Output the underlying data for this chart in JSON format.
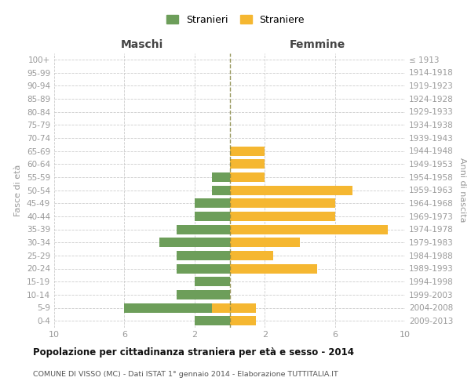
{
  "age_groups": [
    "0-4",
    "5-9",
    "10-14",
    "15-19",
    "20-24",
    "25-29",
    "30-34",
    "35-39",
    "40-44",
    "45-49",
    "50-54",
    "55-59",
    "60-64",
    "65-69",
    "70-74",
    "75-79",
    "80-84",
    "85-89",
    "90-94",
    "95-99",
    "100+"
  ],
  "birth_years": [
    "2009-2013",
    "2004-2008",
    "1999-2003",
    "1994-1998",
    "1989-1993",
    "1984-1988",
    "1979-1983",
    "1974-1978",
    "1969-1973",
    "1964-1968",
    "1959-1963",
    "1954-1958",
    "1949-1953",
    "1944-1948",
    "1939-1943",
    "1934-1938",
    "1929-1933",
    "1924-1928",
    "1919-1923",
    "1914-1918",
    "≤ 1913"
  ],
  "maschi_stranieri": [
    2,
    6,
    3,
    2,
    3,
    3,
    4,
    3,
    2,
    2,
    1,
    1,
    0,
    0,
    0,
    0,
    0,
    0,
    0,
    0,
    0
  ],
  "femmine_straniere": [
    1.5,
    1.5,
    0,
    0,
    5,
    2.5,
    4,
    9,
    6,
    6,
    7,
    2,
    2,
    2,
    0,
    0,
    0,
    0,
    0,
    0,
    0
  ],
  "maschi_straniere": [
    0,
    1,
    0,
    0,
    0,
    0,
    0,
    0,
    0,
    0,
    0,
    0,
    0,
    0,
    0,
    0,
    0,
    0,
    0,
    0,
    0
  ],
  "femmine_stranieri": [
    0,
    0,
    0,
    0,
    0,
    0,
    0,
    0,
    0,
    0,
    0,
    0,
    0,
    0,
    0,
    0,
    0,
    0,
    0,
    0,
    0
  ],
  "color_stranieri": "#6d9e5a",
  "color_straniere": "#f5b731",
  "title": "Popolazione per cittadinanza straniera per età e sesso - 2014",
  "subtitle": "COMUNE DI VISSO (MC) - Dati ISTAT 1° gennaio 2014 - Elaborazione TUTTITALIA.IT",
  "label_maschi": "Maschi",
  "label_femmine": "Femmine",
  "ylabel_left": "Fasce di età",
  "ylabel_right": "Anni di nascita",
  "xmax": 10,
  "legend_stranieri": "Stranieri",
  "legend_straniere": "Straniere",
  "background_color": "#ffffff",
  "grid_color": "#cccccc"
}
